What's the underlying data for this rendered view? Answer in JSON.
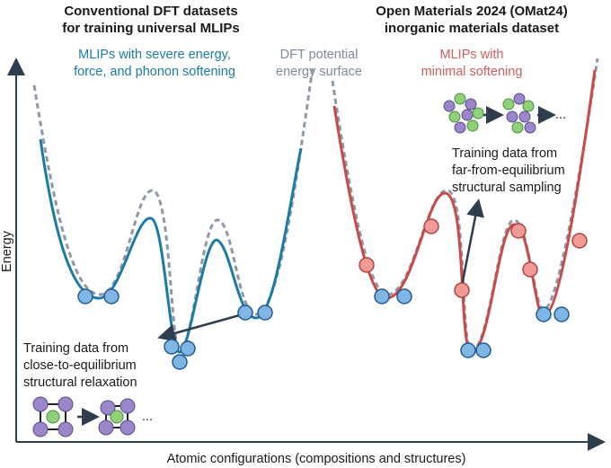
{
  "left_title": [
    "Conventional DFT datasets",
    "for training universal MLIPs"
  ],
  "right_title": [
    "Open Materials 2024 (OMat24)",
    "inorganic materials dataset"
  ],
  "blue_label": [
    "MLIPs with severe energy,",
    "force, and phonon softening"
  ],
  "dft_label": [
    "DFT potential",
    "energy surface"
  ],
  "red_label": [
    "MLIPs with",
    "minimal softening"
  ],
  "far_label": [
    "Training data from",
    "far-from-equilibrium",
    "structural sampling"
  ],
  "close_label": [
    "Training data from",
    "close-to-equilibrium",
    "structural relaxation"
  ],
  "ellipsis": "...",
  "y_axis_label": "Energy",
  "x_axis_label": "Atomic configurations (compositions and structures)"
}
